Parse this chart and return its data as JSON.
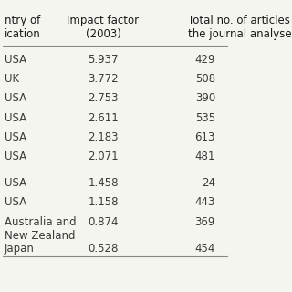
{
  "col1_header": "ntry of\nication",
  "col2_header": "Impact factor\n(2003)",
  "col3_header": "Total no. of articles\nthe journal analyse",
  "rows": [
    [
      "USA",
      "5.937",
      "429"
    ],
    [
      "UK",
      "3.772",
      "508"
    ],
    [
      "USA",
      "2.753",
      "390"
    ],
    [
      "USA",
      "2.611",
      "535"
    ],
    [
      "USA",
      "2.183",
      "613"
    ],
    [
      "USA",
      "2.071",
      "481"
    ],
    [
      "",
      "",
      ""
    ],
    [
      "USA",
      "1.458",
      "24"
    ],
    [
      "USA",
      "1.158",
      "443"
    ],
    [
      "Australia and\nNew Zealand",
      "0.874",
      "369"
    ],
    [
      "Japan",
      "0.528",
      "454"
    ]
  ],
  "bg_color": "#f5f5f0",
  "text_color": "#3a3a3a",
  "header_color": "#1a1a1a",
  "line_color": "#888888",
  "fontsize": 8.5,
  "header_fontsize": 8.5
}
